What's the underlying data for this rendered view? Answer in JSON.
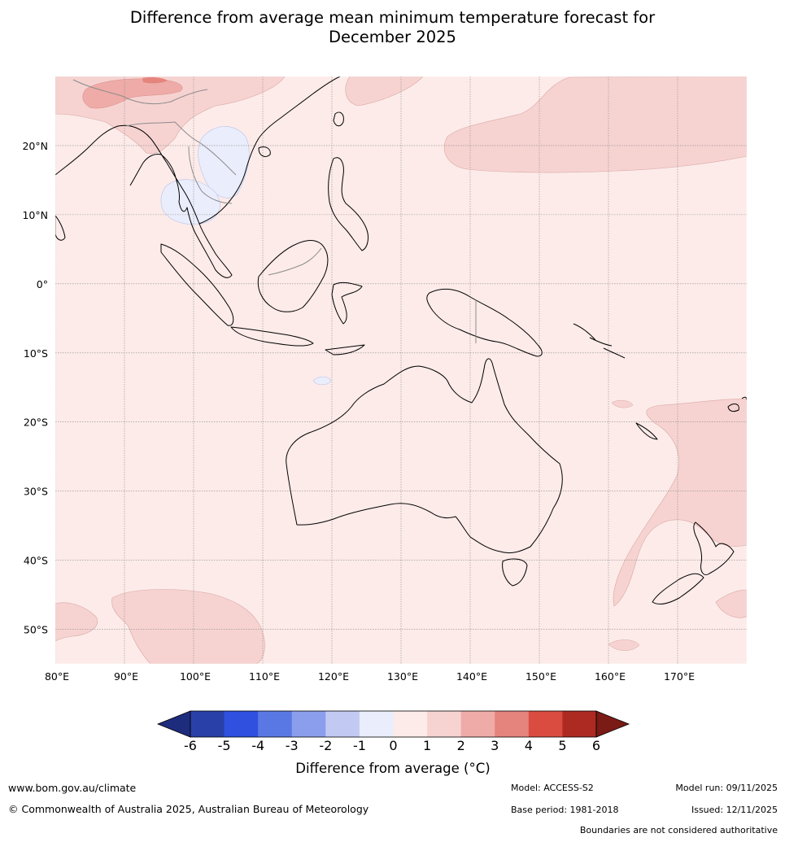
{
  "title": {
    "line1": "Difference from average mean minimum temperature forecast for",
    "line2": "December 2025"
  },
  "map": {
    "lon_range": [
      80,
      180
    ],
    "lat_range": [
      -55,
      30
    ],
    "lon_ticks": [
      80,
      90,
      100,
      110,
      120,
      130,
      140,
      150,
      160,
      170
    ],
    "lon_labels": [
      "80°E",
      "90°E",
      "100°E",
      "110°E",
      "120°E",
      "130°E",
      "140°E",
      "150°E",
      "160°E",
      "170°E"
    ],
    "lat_ticks": [
      20,
      10,
      0,
      -10,
      -20,
      -30,
      -40,
      -50
    ],
    "lat_labels": [
      "20°N",
      "10°N",
      "0°",
      "10°S",
      "20°S",
      "30°S",
      "40°S",
      "50°S"
    ],
    "background_category": "0 to 1",
    "regions": [
      {
        "name": "South China / northern Indochina",
        "category": "1 to 2"
      },
      {
        "name": "South China hotspot",
        "category": "2 to 3"
      },
      {
        "name": "North-west Pacific",
        "category": "1 to 2"
      },
      {
        "name": "Laos / Vietnam",
        "category": "-1 to 0"
      },
      {
        "name": "Andaman Sea / Thailand",
        "category": "-1 to 0"
      },
      {
        "name": "Tasman Sea / New Zealand",
        "category": "1 to 2"
      },
      {
        "name": "Southern Indian Ocean",
        "category": "1 to 2"
      }
    ]
  },
  "colorbar": {
    "ticks": [
      "-6",
      "-5",
      "-4",
      "-3",
      "-2",
      "-1",
      "0",
      "1",
      "2",
      "3",
      "4",
      "5",
      "6"
    ],
    "colors": [
      "#2940a9",
      "#3050e0",
      "#5a78e4",
      "#8a9eed",
      "#c2caf4",
      "#eaedfb",
      "#fcebe9",
      "#f6d3d1",
      "#eeaba7",
      "#e5837d",
      "#da4c40",
      "#ac2a22"
    ],
    "under_color": "#1e2c7d",
    "over_color": "#7a1b16",
    "label": "Difference from average (°C)"
  },
  "footer": {
    "website": "www.bom.gov.au/climate",
    "copyright": "© Commonwealth of Australia 2025, Australian Bureau of Meteorology",
    "model": "Model: ACCESS-S2",
    "base_period": "Base period: 1981-2018",
    "model_run": "Model run: 09/11/2025",
    "issued": "Issued: 12/11/2025",
    "disclaimer": "Boundaries are not considered authoritative"
  }
}
